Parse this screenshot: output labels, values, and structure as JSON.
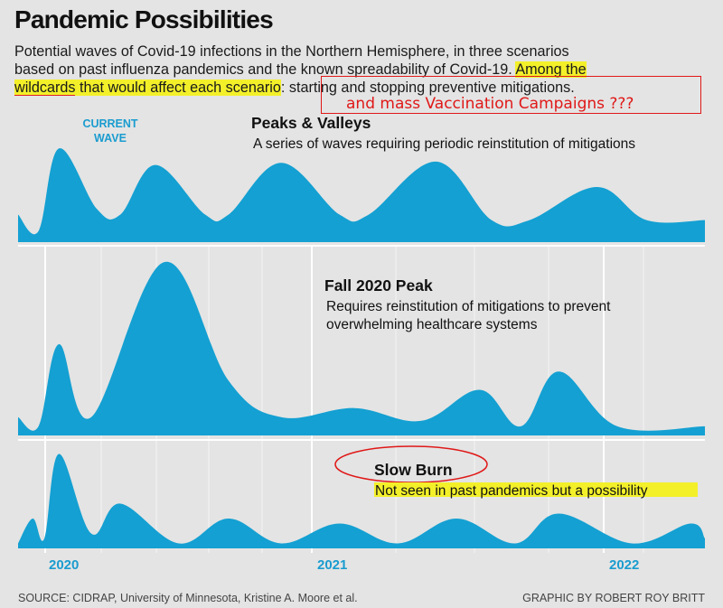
{
  "header": {
    "title": "Pandemic Possibilities",
    "subtitle_line1": "Potential waves of Covid-19 infections in the Northern Hemisphere, in three scenarios",
    "subtitle_line2a": "based on past influenza pandemics and the known spreadability of Covid-19. ",
    "subtitle_line2b": "Among the",
    "subtitle_line3a": "wildcards",
    "subtitle_line3b": " that would affect each scenario",
    "subtitle_line3c": ": starting and stopping preventive mitigations.",
    "annotation_note": "and mass Vaccination Campaigns ???"
  },
  "colors": {
    "wave_fill": "#14a0d2",
    "background": "#e4e4e4",
    "highlight": "#f3f02a",
    "annotation": "#e01818"
  },
  "chart_data": [
    {
      "type": "area",
      "name": "Peaks & Valleys",
      "title": "Peaks & Valleys",
      "subtitle": "A series of waves requiring periodic reinstitution of mitigations",
      "marker_label": "CURRENT\nWAVE",
      "x": [
        2020.0,
        2020.07,
        2020.14,
        2020.27,
        2020.35,
        2020.47,
        2020.64,
        2020.72,
        2020.9,
        2021.1,
        2021.2,
        2021.43,
        2021.62,
        2021.75,
        2021.98,
        2022.15,
        2022.35
      ],
      "y": [
        0.25,
        0.1,
        0.85,
        0.3,
        0.25,
        0.7,
        0.25,
        0.25,
        0.72,
        0.25,
        0.25,
        0.73,
        0.2,
        0.2,
        0.5,
        0.2,
        0.2
      ],
      "ylim": [
        0,
        1
      ]
    },
    {
      "type": "area",
      "name": "Fall 2020 Peak",
      "title": "Fall 2020 Peak",
      "subtitle_line1": "Requires reinstitution of mitigations to prevent",
      "subtitle_line2": "overwhelming healthcare systems",
      "x": [
        2020.0,
        2020.07,
        2020.14,
        2020.25,
        2020.5,
        2020.72,
        2020.9,
        2021.15,
        2021.38,
        2021.58,
        2021.72,
        2021.85,
        2022.05,
        2022.35
      ],
      "y": [
        0.1,
        0.05,
        0.5,
        0.1,
        0.95,
        0.3,
        0.1,
        0.15,
        0.08,
        0.25,
        0.05,
        0.35,
        0.05,
        0.05
      ],
      "ylim": [
        0,
        1
      ]
    },
    {
      "type": "area",
      "name": "Slow Burn",
      "title": "Slow Burn",
      "subtitle": "Not seen in past pandemics but a possibility",
      "x": [
        2020.0,
        2020.05,
        2020.09,
        2020.14,
        2020.25,
        2020.35,
        2020.55,
        2020.72,
        2020.9,
        2021.1,
        2021.3,
        2021.5,
        2021.7,
        2021.85,
        2022.1,
        2022.3,
        2022.35
      ],
      "y": [
        0.05,
        0.3,
        0.1,
        0.95,
        0.15,
        0.45,
        0.05,
        0.3,
        0.05,
        0.25,
        0.05,
        0.3,
        0.05,
        0.35,
        0.05,
        0.25,
        0.1
      ],
      "ylim": [
        0,
        1
      ]
    }
  ],
  "axis": {
    "ticks": [
      "2020",
      "2021",
      "2022"
    ],
    "tick_values": [
      2020.0,
      2021.0,
      2022.0
    ]
  },
  "footer": {
    "source": "SOURCE: CIDRAP, University of Minnesota, Kristine A. Moore et al.",
    "credit": "GRAPHIC BY ROBERT ROY BRITT"
  }
}
